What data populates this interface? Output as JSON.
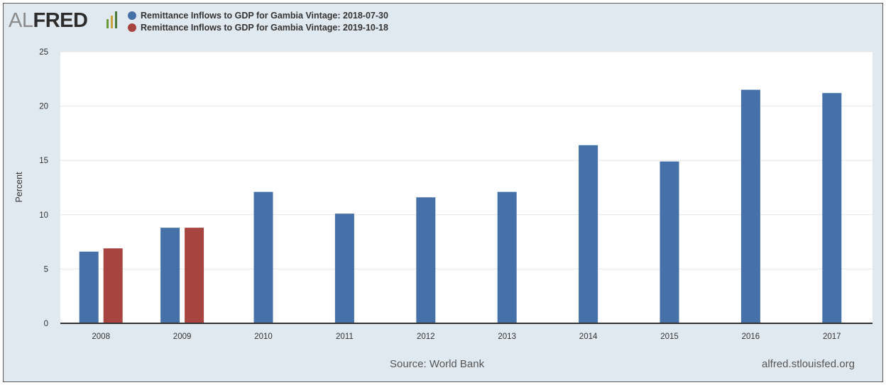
{
  "logo": {
    "part1": "AL",
    "part2": "FRED"
  },
  "footer": {
    "source": "Source: World Bank",
    "credit": "alfred.stlouisfed.org"
  },
  "chart_data": {
    "type": "bar",
    "ylabel": "Percent",
    "ylim": [
      0,
      25
    ],
    "yticks": [
      0,
      5,
      10,
      15,
      20,
      25
    ],
    "grid": true,
    "legend_position": "top-left",
    "categories": [
      "2008",
      "2009",
      "2010",
      "2011",
      "2012",
      "2013",
      "2014",
      "2015",
      "2016",
      "2017"
    ],
    "series": [
      {
        "name": "Remittance Inflows to GDP for Gambia Vintage: 2018-07-30",
        "color": "#4571a8",
        "values": [
          6.6,
          8.8,
          12.1,
          10.1,
          11.6,
          12.1,
          16.4,
          14.9,
          21.5,
          21.2
        ]
      },
      {
        "name": "Remittance Inflows to GDP for Gambia Vintage: 2019-10-18",
        "color": "#a84440",
        "values": [
          6.9,
          8.8,
          null,
          null,
          null,
          null,
          null,
          null,
          null,
          null
        ]
      }
    ]
  }
}
